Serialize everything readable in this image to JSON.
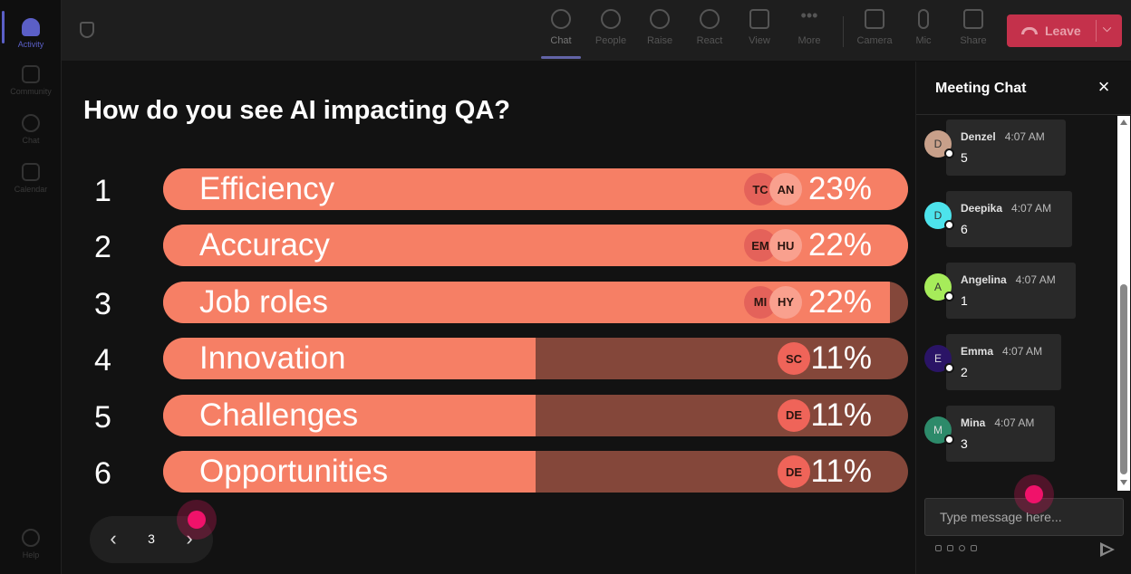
{
  "rail": {
    "items": [
      {
        "label": "Activity"
      },
      {
        "label": "Community"
      },
      {
        "label": "Chat"
      },
      {
        "label": "Calendar"
      }
    ],
    "help_label": "Help"
  },
  "toolbar": {
    "buttons": [
      {
        "label": "Chat",
        "icon": "chat-bubble-icon"
      },
      {
        "label": "People",
        "icon": "person-icon"
      },
      {
        "label": "Raise",
        "icon": "raise-hand-icon"
      },
      {
        "label": "React",
        "icon": "smiley-icon"
      },
      {
        "label": "View",
        "icon": "grid-icon"
      },
      {
        "label": "More",
        "icon": "more-dots-icon"
      },
      {
        "label": "Camera",
        "icon": "camera-off-icon"
      },
      {
        "label": "Mic",
        "icon": "microphone-icon"
      },
      {
        "label": "Share",
        "icon": "share-tray-icon"
      }
    ],
    "leave_label": "Leave",
    "leave_color": "#c4314b"
  },
  "poll": {
    "question": "How do you see AI impacting QA?",
    "fill_color": "#f67f65",
    "track_color": "#84473a",
    "options": [
      {
        "rank": "1",
        "label": "Efficiency",
        "pct_text": "23%",
        "fill": 1.0,
        "avatars": [
          "TC",
          "AN"
        ]
      },
      {
        "rank": "2",
        "label": "Accuracy",
        "pct_text": "22%",
        "fill": 1.0,
        "avatars": [
          "EM",
          "HU"
        ]
      },
      {
        "rank": "3",
        "label": "Job roles",
        "pct_text": "22%",
        "fill": 0.976,
        "avatars": [
          "MI",
          "HY"
        ]
      },
      {
        "rank": "4",
        "label": "Innovation",
        "pct_text": "11%",
        "fill": 0.5,
        "avatars": [
          "SC"
        ]
      },
      {
        "rank": "5",
        "label": "Challenges",
        "pct_text": "11%",
        "fill": 0.5,
        "avatars": [
          "DE"
        ]
      },
      {
        "rank": "6",
        "label": "Opportunities",
        "pct_text": "11%",
        "fill": 0.5,
        "avatars": [
          "DE"
        ]
      }
    ]
  },
  "pager": {
    "page": "3"
  },
  "chat": {
    "title": "Meeting Chat",
    "messages": [
      {
        "initial": "D",
        "name": "Denzel",
        "time": "4:07 AM",
        "text": "5",
        "color": "#c8a08a"
      },
      {
        "initial": "D",
        "name": "Deepika",
        "time": "4:07 AM",
        "text": "6",
        "color": "#4de3ec"
      },
      {
        "initial": "A",
        "name": "Angelina",
        "time": "4:07 AM",
        "text": "1",
        "color": "#a6ec5a"
      },
      {
        "initial": "E",
        "name": "Emma",
        "time": "4:07 AM",
        "text": "2",
        "color": "#2a1466"
      },
      {
        "initial": "M",
        "name": "Mina",
        "time": "4:07 AM",
        "text": "3",
        "color": "#2d8a6a"
      }
    ],
    "input_placeholder": "Type message here..."
  }
}
